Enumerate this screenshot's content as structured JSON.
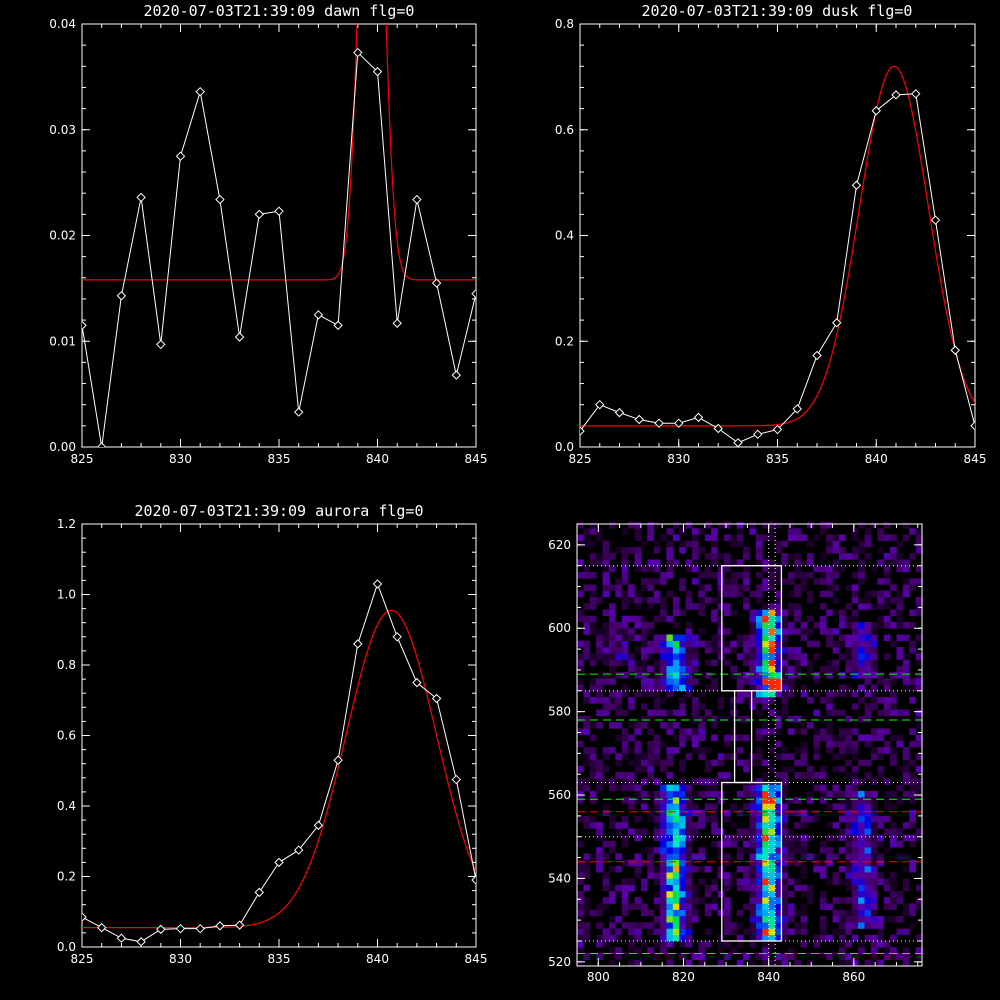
{
  "colors": {
    "background": "#000000",
    "axes": "#ffffff",
    "data": "#ffffff",
    "fit": "#ff0000",
    "guide_green": "#00ff00",
    "guide_red": "#ff0000"
  },
  "chart_data": [
    {
      "type": "line",
      "title": "2020-07-03T21:39:09 dawn flg=0",
      "xlim": [
        825,
        845
      ],
      "ylim": [
        0,
        0.04
      ],
      "xticks": [
        "825",
        "830",
        "835",
        "840",
        "845"
      ],
      "yticks": [
        "0.00",
        "0.01",
        "0.02",
        "0.03",
        "0.04"
      ],
      "xtick_values": [
        825,
        830,
        835,
        840,
        845
      ],
      "ytick_values": [
        0,
        0.01,
        0.02,
        0.03,
        0.04
      ],
      "series": [
        {
          "x": [
            825,
            826,
            827,
            828,
            829,
            830,
            831,
            832,
            833,
            834,
            835,
            836,
            837,
            838,
            839,
            840,
            841,
            842,
            843,
            844,
            845
          ],
          "y": [
            0.0115,
            0.0,
            0.0143,
            0.0236,
            0.0097,
            0.0275,
            0.0336,
            0.0234,
            0.0104,
            0.022,
            0.0223,
            0.0033,
            0.0125,
            0.0115,
            0.0373,
            0.0355,
            0.0117,
            0.0234,
            0.0155,
            0.0068,
            0.0145
          ],
          "markers": true
        },
        {
          "fit": true,
          "baseline": 0.0158,
          "amplitude": 0.06,
          "center": 839.7,
          "sigma": 0.55
        }
      ]
    },
    {
      "type": "line",
      "title": "2020-07-03T21:39:09 dusk flg=0",
      "xlim": [
        825,
        845
      ],
      "ylim": [
        0,
        0.8
      ],
      "xticks": [
        "825",
        "830",
        "835",
        "840",
        "845"
      ],
      "yticks": [
        "0.0",
        "0.2",
        "0.4",
        "0.6",
        "0.8"
      ],
      "xtick_values": [
        825,
        830,
        835,
        840,
        845
      ],
      "ytick_values": [
        0,
        0.2,
        0.4,
        0.6,
        0.8
      ],
      "series": [
        {
          "x": [
            825,
            826,
            827,
            828,
            829,
            830,
            831,
            832,
            833,
            834,
            835,
            836,
            837,
            838,
            839,
            840,
            841,
            842,
            843,
            844,
            845
          ],
          "y": [
            0.03,
            0.08,
            0.065,
            0.052,
            0.045,
            0.045,
            0.056,
            0.035,
            0.008,
            0.024,
            0.033,
            0.072,
            0.173,
            0.235,
            0.495,
            0.636,
            0.666,
            0.668,
            0.429,
            0.183,
            0.04
          ],
          "markers": true
        },
        {
          "fit": true,
          "baseline": 0.04,
          "amplitude": 0.68,
          "center": 840.9,
          "sigma": 1.75
        }
      ]
    },
    {
      "type": "line",
      "title": "2020-07-03T21:39:09 aurora flg=0",
      "xlim": [
        825,
        845
      ],
      "ylim": [
        0,
        1.2
      ],
      "xticks": [
        "825",
        "830",
        "835",
        "840",
        "845"
      ],
      "yticks": [
        "0.0",
        "0.2",
        "0.4",
        "0.6",
        "0.8",
        "1.0",
        "1.2"
      ],
      "xtick_values": [
        825,
        830,
        835,
        840,
        845
      ],
      "ytick_values": [
        0,
        0.2,
        0.4,
        0.6,
        0.8,
        1.0,
        1.2
      ],
      "series": [
        {
          "x": [
            825,
            826,
            827,
            828,
            829,
            830,
            831,
            832,
            833,
            834,
            835,
            836,
            837,
            838,
            839,
            840,
            841,
            842,
            843,
            844,
            845
          ],
          "y": [
            0.085,
            0.055,
            0.025,
            0.015,
            0.05,
            0.052,
            0.052,
            0.06,
            0.062,
            0.155,
            0.24,
            0.275,
            0.345,
            0.53,
            0.86,
            1.03,
            0.88,
            0.75,
            0.705,
            0.475,
            0.19
          ],
          "markers": true
        },
        {
          "fit": true,
          "baseline": 0.055,
          "amplitude": 0.9,
          "center": 840.7,
          "sigma": 2.3
        }
      ]
    },
    {
      "type": "heatmap",
      "title": "",
      "xlim": [
        795,
        876
      ],
      "ylim": [
        519,
        625
      ],
      "xticks": [
        "800",
        "820",
        "840",
        "860"
      ],
      "yticks": [
        "520",
        "540",
        "560",
        "580",
        "600",
        "620"
      ],
      "xtick_values": [
        800,
        820,
        840,
        860
      ],
      "ytick_values": [
        520,
        540,
        560,
        580,
        600,
        620
      ],
      "bands": [
        {
          "x": 818,
          "y_ranges": [
            [
              585,
              598
            ],
            [
              524,
              562
            ]
          ],
          "intensity": 0.8
        },
        {
          "x": 840,
          "y_ranges": [
            [
              583,
              603
            ],
            [
              524,
              562
            ]
          ],
          "intensity": 1.0
        },
        {
          "x": 862,
          "y_ranges": [
            [
              588,
              600
            ],
            [
              528,
              560
            ]
          ],
          "intensity": 0.35
        },
        {
          "x": 804,
          "y_ranges": [
            [
              590,
              600
            ]
          ],
          "intensity": 0.2
        }
      ],
      "hot_pixel": {
        "x": 841,
        "y": 586
      },
      "box_upper": {
        "x0": 829,
        "x1": 843,
        "y0": 585,
        "y1": 615
      },
      "box_lower": {
        "x0": 829,
        "x1": 843,
        "y0": 525,
        "y1": 563
      },
      "connector": {
        "x0": 832,
        "x1": 836,
        "y0": 563,
        "y1": 585
      },
      "dotted_h": [
        615,
        585,
        563,
        525,
        550
      ],
      "dotted_v": [
        840,
        841.5
      ],
      "green_dashed": [
        589,
        578,
        559,
        522
      ],
      "red_dashed": [
        556,
        544
      ]
    }
  ]
}
